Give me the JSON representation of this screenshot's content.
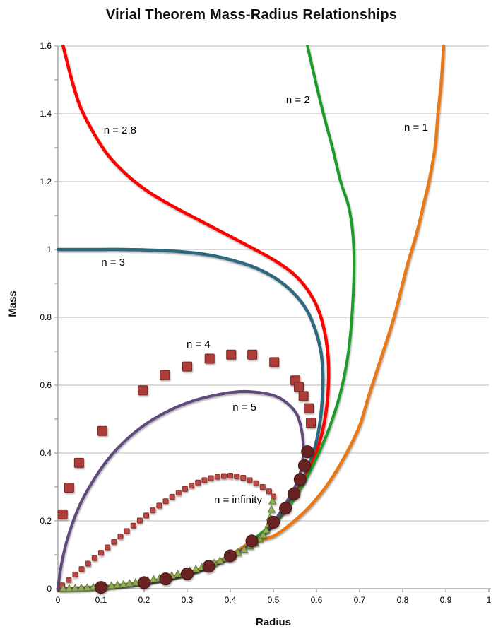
{
  "title": "Virial Theorem Mass-Radius Relationships",
  "x_axis": {
    "label": "Radius",
    "tick_values": [
      0,
      0.1,
      0.2,
      0.3,
      0.4,
      0.5,
      0.6,
      0.7,
      0.8,
      0.9,
      1
    ],
    "tick_labels": [
      "0",
      "0.1",
      "0.2",
      "0.3",
      "0.4",
      "0.5",
      "0.6",
      "0.7",
      "0.8",
      "0.9",
      "1"
    ]
  },
  "y_axis": {
    "label": "Mass",
    "tick_values": [
      0,
      0.2,
      0.4,
      0.6,
      0.8,
      1,
      1.2,
      1.4,
      1.6
    ],
    "tick_labels": [
      "0",
      "0.2",
      "0.4",
      "0.6",
      "0.8",
      "1",
      "1.2",
      "1.4",
      "1.6"
    ]
  },
  "colors": {
    "background": "#FFFFFF",
    "grid": "#C8C8C8",
    "axis": "#9B9B9B",
    "text": "#000000",
    "n1_orange": "#E87914",
    "n2_green": "#1D9B26",
    "n28_red": "#FE0000",
    "n3_teal": "#2E6B7E",
    "n5_purple": "#5E4A7D",
    "n4_square": "#AC3C38",
    "ninf_square": "#BC4944",
    "triangle_green": "#90AE4F",
    "circle_maroon": "#682322"
  },
  "chart_data": {
    "type": "line",
    "title": "Virial Theorem Mass-Radius Relationships",
    "xlabel": "Radius",
    "ylabel": "Mass",
    "xlim": [
      0,
      1
    ],
    "ylim": [
      0,
      1.6
    ],
    "grid": "horizontal-only",
    "legend": "inline-curve-labels",
    "series": [
      {
        "id": "n3",
        "label": "n = 3",
        "style": "line",
        "color": "#2E6B7E",
        "width": 4.5,
        "label_pos": [
          0.128,
          0.963
        ],
        "points": [
          [
            0,
            1.0
          ],
          [
            0.08,
            1.0
          ],
          [
            0.15,
            1.0
          ],
          [
            0.22,
            0.998
          ],
          [
            0.28,
            0.994
          ],
          [
            0.345,
            0.985
          ],
          [
            0.4,
            0.97
          ],
          [
            0.455,
            0.948
          ],
          [
            0.505,
            0.915
          ],
          [
            0.548,
            0.87
          ],
          [
            0.578,
            0.82
          ],
          [
            0.598,
            0.76
          ],
          [
            0.61,
            0.7
          ],
          [
            0.6145,
            0.64
          ],
          [
            0.614,
            0.575
          ],
          [
            0.609,
            0.5
          ],
          [
            0.598,
            0.425
          ],
          [
            0.578,
            0.35
          ],
          [
            0.55,
            0.28
          ],
          [
            0.521,
            0.225
          ],
          [
            0.49,
            0.175
          ],
          [
            0.45,
            0.137
          ],
          [
            0.4,
            0.096
          ],
          [
            0.35,
            0.066
          ],
          [
            0.3,
            0.045
          ],
          [
            0.25,
            0.03
          ],
          [
            0.2,
            0.019
          ],
          [
            0.15,
            0.011
          ],
          [
            0.1,
            0.005
          ],
          [
            0.05,
            0.002
          ],
          [
            0,
            0
          ]
        ]
      },
      {
        "id": "n28",
        "label": "n = 2.8",
        "style": "line",
        "color": "#FE0000",
        "width": 4.5,
        "label_pos": [
          0.144,
          1.352
        ],
        "points": [
          [
            0.012,
            1.6
          ],
          [
            0.032,
            1.5
          ],
          [
            0.052,
            1.42
          ],
          [
            0.08,
            1.35
          ],
          [
            0.115,
            1.28
          ],
          [
            0.16,
            1.22
          ],
          [
            0.21,
            1.17
          ],
          [
            0.27,
            1.125
          ],
          [
            0.33,
            1.085
          ],
          [
            0.39,
            1.045
          ],
          [
            0.45,
            1.005
          ],
          [
            0.5,
            0.97
          ],
          [
            0.545,
            0.93
          ],
          [
            0.58,
            0.88
          ],
          [
            0.605,
            0.82
          ],
          [
            0.62,
            0.75
          ],
          [
            0.627,
            0.68
          ],
          [
            0.6275,
            0.6
          ],
          [
            0.622,
            0.52
          ],
          [
            0.61,
            0.445
          ],
          [
            0.59,
            0.37
          ],
          [
            0.56,
            0.295
          ],
          [
            0.528,
            0.235
          ],
          [
            0.49,
            0.18
          ],
          [
            0.45,
            0.14
          ],
          [
            0.4,
            0.098
          ],
          [
            0.35,
            0.068
          ],
          [
            0.3,
            0.046
          ],
          [
            0.25,
            0.03
          ],
          [
            0.2,
            0.019
          ],
          [
            0.15,
            0.011
          ],
          [
            0.1,
            0.005
          ],
          [
            0.05,
            0.002
          ],
          [
            0,
            0
          ]
        ]
      },
      {
        "id": "n2",
        "label": "n = 2",
        "style": "line",
        "color": "#1D9B26",
        "width": 4,
        "label_pos": [
          0.557,
          1.442
        ],
        "points": [
          [
            0.579,
            1.6
          ],
          [
            0.597,
            1.5
          ],
          [
            0.616,
            1.4
          ],
          [
            0.637,
            1.3
          ],
          [
            0.656,
            1.2
          ],
          [
            0.674,
            1.13
          ],
          [
            0.684,
            1.05
          ],
          [
            0.687,
            0.95
          ],
          [
            0.682,
            0.8
          ],
          [
            0.672,
            0.68
          ],
          [
            0.655,
            0.575
          ],
          [
            0.63,
            0.475
          ],
          [
            0.6,
            0.385
          ],
          [
            0.565,
            0.3
          ],
          [
            0.532,
            0.24
          ],
          [
            0.5,
            0.195
          ],
          [
            0.45,
            0.142
          ],
          [
            0.4,
            0.1
          ],
          [
            0.35,
            0.068
          ],
          [
            0.3,
            0.046
          ],
          [
            0.25,
            0.03
          ],
          [
            0.2,
            0.019
          ],
          [
            0.15,
            0.011
          ],
          [
            0.1,
            0.005
          ],
          [
            0.05,
            0.002
          ],
          [
            0,
            0
          ]
        ]
      },
      {
        "id": "n1",
        "label": "n = 1",
        "style": "line",
        "color": "#E87914",
        "width": 4.5,
        "label_pos": [
          0.831,
          1.36
        ],
        "points": [
          [
            0.895,
            1.6
          ],
          [
            0.89,
            1.5
          ],
          [
            0.882,
            1.4
          ],
          [
            0.875,
            1.3
          ],
          [
            0.861,
            1.2
          ],
          [
            0.85,
            1.14
          ],
          [
            0.833,
            1.05
          ],
          [
            0.81,
            0.95
          ],
          [
            0.78,
            0.8
          ],
          [
            0.75,
            0.68
          ],
          [
            0.723,
            0.575
          ],
          [
            0.7,
            0.48
          ],
          [
            0.67,
            0.4
          ],
          [
            0.63,
            0.315
          ],
          [
            0.59,
            0.25
          ],
          [
            0.549,
            0.2
          ],
          [
            0.5,
            0.155
          ],
          [
            0.45,
            0.138
          ],
          [
            0.4,
            0.098
          ],
          [
            0.35,
            0.068
          ],
          [
            0.3,
            0.046
          ],
          [
            0.25,
            0.03
          ],
          [
            0.2,
            0.019
          ],
          [
            0.15,
            0.011
          ],
          [
            0.1,
            0.005
          ],
          [
            0.05,
            0.002
          ],
          [
            0,
            0
          ]
        ]
      },
      {
        "id": "n5",
        "label": "n = 5",
        "style": "line",
        "color": "#5E4A7D",
        "width": 4,
        "label_pos": [
          0.433,
          0.535
        ],
        "points": [
          [
            0,
            0
          ],
          [
            0.003,
            0.03
          ],
          [
            0.01,
            0.085
          ],
          [
            0.025,
            0.16
          ],
          [
            0.05,
            0.245
          ],
          [
            0.08,
            0.315
          ],
          [
            0.115,
            0.38
          ],
          [
            0.155,
            0.435
          ],
          [
            0.2,
            0.482
          ],
          [
            0.25,
            0.52
          ],
          [
            0.3,
            0.548
          ],
          [
            0.355,
            0.568
          ],
          [
            0.42,
            0.581
          ],
          [
            0.47,
            0.578
          ],
          [
            0.51,
            0.565
          ],
          [
            0.538,
            0.54
          ],
          [
            0.556,
            0.51
          ],
          [
            0.565,
            0.47
          ],
          [
            0.569,
            0.43
          ],
          [
            0.569,
            0.39
          ],
          [
            0.563,
            0.345
          ],
          [
            0.55,
            0.3
          ],
          [
            0.53,
            0.255
          ],
          [
            0.516,
            0.225
          ],
          [
            0.49,
            0.18
          ],
          [
            0.45,
            0.135
          ],
          [
            0.4,
            0.095
          ],
          [
            0.35,
            0.065
          ],
          [
            0.3,
            0.044
          ],
          [
            0.25,
            0.029
          ],
          [
            0.2,
            0.018
          ],
          [
            0.15,
            0.01
          ],
          [
            0.1,
            0.005
          ],
          [
            0.05,
            0.002
          ],
          [
            0,
            0
          ]
        ]
      },
      {
        "id": "ninf",
        "label": "n = infinity",
        "style": "markers",
        "marker": "square",
        "size": 7,
        "color": "#BC4944",
        "stroke": "#8C2F28",
        "label_pos": [
          0.418,
          0.262
        ],
        "points": [
          [
            0.01,
            0.01
          ],
          [
            0.025,
            0.026
          ],
          [
            0.04,
            0.042
          ],
          [
            0.055,
            0.058
          ],
          [
            0.07,
            0.074
          ],
          [
            0.085,
            0.09
          ],
          [
            0.1,
            0.106
          ],
          [
            0.115,
            0.122
          ],
          [
            0.13,
            0.138
          ],
          [
            0.145,
            0.154
          ],
          [
            0.16,
            0.17
          ],
          [
            0.175,
            0.186
          ],
          [
            0.19,
            0.201
          ],
          [
            0.205,
            0.216
          ],
          [
            0.22,
            0.231
          ],
          [
            0.235,
            0.245
          ],
          [
            0.25,
            0.258
          ],
          [
            0.265,
            0.271
          ],
          [
            0.28,
            0.283
          ],
          [
            0.295,
            0.294
          ],
          [
            0.31,
            0.304
          ],
          [
            0.325,
            0.313
          ],
          [
            0.34,
            0.32
          ],
          [
            0.355,
            0.326
          ],
          [
            0.37,
            0.33
          ],
          [
            0.385,
            0.332
          ],
          [
            0.4,
            0.333
          ],
          [
            0.415,
            0.331
          ],
          [
            0.43,
            0.327
          ],
          [
            0.445,
            0.32
          ],
          [
            0.46,
            0.311
          ],
          [
            0.475,
            0.3
          ],
          [
            0.49,
            0.287
          ],
          [
            0.5,
            0.272
          ]
        ]
      },
      {
        "id": "n4",
        "label": "n = 4",
        "style": "markers",
        "marker": "square",
        "size": 13,
        "color": "#AC3C38",
        "stroke": "#7C2722",
        "label_pos": [
          0.326,
          0.721
        ],
        "points": [
          [
            0.011,
            0.219
          ],
          [
            0.026,
            0.298
          ],
          [
            0.049,
            0.371
          ],
          [
            0.103,
            0.465
          ],
          [
            0.197,
            0.585
          ],
          [
            0.248,
            0.63
          ],
          [
            0.3,
            0.655
          ],
          [
            0.352,
            0.678
          ],
          [
            0.402,
            0.69
          ],
          [
            0.451,
            0.69
          ],
          [
            0.502,
            0.668
          ],
          [
            0.551,
            0.614
          ],
          [
            0.559,
            0.595
          ],
          [
            0.57,
            0.568
          ],
          [
            0.582,
            0.532
          ],
          [
            0.587,
            0.489
          ]
        ]
      },
      {
        "id": "triangles",
        "label": "",
        "style": "markers",
        "marker": "triangle",
        "size": 10,
        "color": "#90AE4F",
        "stroke": "#647E35",
        "points": [
          [
            0.012,
            0.0001
          ],
          [
            0.026,
            0.0004
          ],
          [
            0.04,
            0.001
          ],
          [
            0.054,
            0.0016
          ],
          [
            0.068,
            0.0026
          ],
          [
            0.082,
            0.0037
          ],
          [
            0.096,
            0.0051
          ],
          [
            0.11,
            0.0067
          ],
          [
            0.124,
            0.0085
          ],
          [
            0.138,
            0.0105
          ],
          [
            0.152,
            0.0127
          ],
          [
            0.166,
            0.0152
          ],
          [
            0.18,
            0.0178
          ],
          [
            0.194,
            0.0207
          ],
          [
            0.208,
            0.0238
          ],
          [
            0.222,
            0.0271
          ],
          [
            0.236,
            0.0307
          ],
          [
            0.25,
            0.0345
          ],
          [
            0.264,
            0.0385
          ],
          [
            0.278,
            0.0428
          ],
          [
            0.292,
            0.0474
          ],
          [
            0.306,
            0.0523
          ],
          [
            0.32,
            0.0575
          ],
          [
            0.334,
            0.063
          ],
          [
            0.348,
            0.0689
          ],
          [
            0.362,
            0.0752
          ],
          [
            0.376,
            0.082
          ],
          [
            0.39,
            0.0893
          ],
          [
            0.404,
            0.0972
          ],
          [
            0.418,
            0.1058
          ],
          [
            0.432,
            0.115
          ],
          [
            0.446,
            0.125
          ],
          [
            0.458,
            0.135
          ],
          [
            0.468,
            0.146
          ],
          [
            0.476,
            0.158
          ],
          [
            0.483,
            0.172
          ],
          [
            0.489,
            0.19
          ],
          [
            0.4925,
            0.21
          ],
          [
            0.4955,
            0.233
          ],
          [
            0.498,
            0.258
          ]
        ]
      },
      {
        "id": "circles",
        "label": "",
        "style": "markers",
        "marker": "circle",
        "size": 17,
        "color": "#682322",
        "stroke": "#451312",
        "points": [
          [
            0.1,
            0.004
          ],
          [
            0.2,
            0.018
          ],
          [
            0.25,
            0.029
          ],
          [
            0.3,
            0.044
          ],
          [
            0.35,
            0.066
          ],
          [
            0.4,
            0.097
          ],
          [
            0.45,
            0.141
          ],
          [
            0.5,
            0.196
          ],
          [
            0.528,
            0.237
          ],
          [
            0.548,
            0.28
          ],
          [
            0.562,
            0.322
          ],
          [
            0.572,
            0.363
          ],
          [
            0.579,
            0.404
          ]
        ]
      }
    ]
  }
}
